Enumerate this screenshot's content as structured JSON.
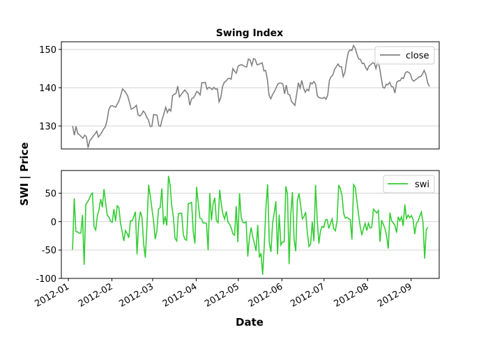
{
  "chart_data": {
    "type": "line",
    "title": "Swing Index",
    "xlabel": "Date",
    "ylabel": "SWI | Price",
    "x_ticks": [
      "2012-01",
      "2012-02",
      "2012-03",
      "2012-04",
      "2012-05",
      "2012-06",
      "2012-07",
      "2012-08",
      "2012-09"
    ],
    "x_range": [
      "2011-12-27",
      "2012-09-21"
    ],
    "grid": "horizontal",
    "panels": [
      {
        "ylim": [
          124,
          152
        ],
        "yticks": [
          130,
          140,
          150
        ],
        "legend_position": "top-right",
        "series": [
          {
            "name": "close",
            "color": "#808080",
            "start_date": "2012-01-04",
            "end_date": "2012-09-14",
            "values": [
              130.0,
              127.6,
              129.9,
              128.0,
              127.7,
              127.2,
              126.8,
              127.6,
              127.2,
              124.3,
              126.2,
              126.7,
              127.4,
              127.9,
              128.6,
              127.1,
              127.7,
              128.4,
              129.2,
              129.8,
              131.5,
              134.2,
              135.2,
              135.3,
              135.1,
              134.9,
              135.8,
              136.6,
              138.1,
              139.7,
              139.2,
              138.6,
              137.8,
              136.2,
              134.4,
              134.6,
              134.9,
              135.4,
              132.9,
              132.6,
              133.0,
              133.9,
              133.4,
              132.3,
              131.6,
              129.9,
              129.9,
              133.0,
              132.9,
              132.8,
              130.1,
              129.9,
              131.8,
              133.2,
              134.9,
              133.5,
              134.4,
              133.9,
              137.9,
              138.3,
              138.5,
              140.4,
              137.6,
              138.2,
              138.8,
              139.4,
              138.9,
              138.3,
              135.4,
              137.1,
              137.3,
              138.0,
              139.0,
              138.7,
              138.1,
              141.3,
              141.3,
              141.4,
              139.6,
              140.1,
              139.9,
              139.5,
              140.1,
              139.6,
              139.7,
              136.3,
              137.4,
              140.3,
              141.4,
              141.7,
              142.3,
              142.5,
              142.2,
              145.0,
              144.3,
              143.8,
              145.6,
              145.9,
              146.0,
              145.8,
              145.5,
              145.4,
              147.5,
              147.2,
              145.8,
              147.6,
              147.4,
              146.0,
              146.1,
              146.3,
              146.5,
              144.4,
              144.5,
              142.2,
              138.0,
              137.1,
              138.2,
              138.9,
              139.9,
              140.9,
              141.2,
              141.2,
              141.0,
              138.4,
              140.7,
              138.3,
              138.1,
              136.4,
              135.9,
              135.4,
              138.3,
              141.3,
              139.9,
              141.9,
              139.9,
              138.8,
              139.6,
              139.2,
              141.3,
              141.0,
              141.6,
              140.9,
              137.9,
              137.4,
              137.3,
              137.2,
              137.5,
              137.0,
              138.0,
              141.9,
              142.9,
              143.3,
              144.8,
              145.5,
              146.2,
              145.5,
              145.5,
              142.9,
              144.0,
              147.0,
              149.3,
              149.9,
              149.7,
              151.0,
              150.3,
              148.7,
              147.5,
              147.4,
              146.3,
              146.4,
              145.3,
              144.6,
              145.7,
              146.0,
              146.5,
              146.4,
              145.0,
              146.9,
              145.5,
              142.8,
              140.1,
              139.9,
              140.9,
              140.8,
              141.4,
              140.3,
              140.2,
              138.6,
              141.3,
              141.8,
              141.8,
              142.6,
              142.4,
              143.8,
              144.2,
              144.0,
              143.5,
              142.1,
              141.7,
              142.1,
              142.4,
              142.8,
              142.9,
              143.6,
              144.5,
              143.4,
              141.3,
              140.3
            ]
          }
        ]
      },
      {
        "ylim": [
          -100,
          90
        ],
        "yticks": [
          -100,
          -50,
          0,
          50
        ],
        "legend_position": "top-right",
        "series": [
          {
            "name": "swi",
            "color": "#32cd32",
            "start_date": "2012-01-04",
            "end_date": "2012-09-13",
            "values": [
              -49.4,
              41.1,
              -17.4,
              -18.0,
              -20.2,
              -20.3,
              11.8,
              -76.0,
              29.7,
              34.5,
              39.5,
              47.0,
              50.3,
              -9.4,
              -14.7,
              10.3,
              21.2,
              39.7,
              25.2,
              57.2,
              32.9,
              11.0,
              8.2,
              0.4,
              -1.0,
              22.1,
              0.9,
              27.9,
              24.7,
              -2.7,
              -17.9,
              -34.1,
              -15.8,
              -20.9,
              -28.5,
              1.3,
              1.3,
              8.4,
              17.3,
              -57.6,
              -1.7,
              17.6,
              7.1,
              -39.5,
              -63.5,
              -7.8,
              64.8,
              45.4,
              22.8,
              1.1,
              -30.9,
              -16.3,
              22.2,
              24.6,
              58.5,
              -5.1,
              9.6,
              -7.0,
              80.7,
              64.5,
              28.1,
              7.3,
              -29.8,
              -34.0,
              13.7,
              14.8,
              14.7,
              -23.2,
              -31.4,
              -32.8,
              31.8,
              32.5,
              33.8,
              -17.6,
              -38.5,
              61.2,
              33.5,
              6.2,
              5.1,
              -2.6,
              -2.2,
              -3.4,
              -50.5,
              50.4,
              2.1,
              31.1,
              42.1,
              1.9,
              -1.9,
              56.1,
              29.4,
              12.5,
              4.7,
              18.2,
              -1.2,
              -4.5,
              -11.5,
              -21.5,
              -24.0,
              27.3,
              -36.2,
              49.9,
              7.5,
              -1.2,
              -2.3,
              -0.1,
              -61.5,
              -28.8,
              -10.4,
              -26.6,
              -38.7,
              -51.7,
              -5.9,
              -63.2,
              -55.6,
              -93.5,
              -40.0,
              26.1,
              65.6,
              -36.9,
              -53.2,
              -2.9,
              15.6,
              35.8,
              -57.6,
              12.4,
              -41.0,
              -35.6,
              -36.0,
              62.1,
              49.0,
              -74.8,
              13.6,
              52.1,
              -30.5,
              -52.1,
              37.1,
              49.8,
              27.8,
              4.9,
              9.0,
              16.8,
              -18.9,
              -43.7,
              -39.7,
              0.0,
              -34.3,
              64.5,
              3.0,
              -38.7,
              -15.8,
              -8.3,
              -10.3,
              2.9,
              3.7,
              -12.2,
              -3.1,
              4.7,
              -12.7,
              -16.1,
              1.4,
              64.6,
              57.8,
              46.1,
              14.3,
              6.0,
              7.9,
              5.0,
              3.6,
              -31.8,
              65.0,
              60.7,
              36.9,
              12.6,
              -8.5,
              -23.6,
              -12.1,
              -3.0,
              -15.8,
              -2.7,
              -11.3,
              -10.3,
              21.9,
              18.7,
              15.2,
              19.7,
              -35.6,
              2.6,
              -4.9,
              -12.3,
              -25.6,
              -47.4,
              15.8,
              1.5,
              -2.4,
              -6.4,
              -19.5,
              8.6,
              1.6,
              8.7,
              -7.5,
              30.3,
              5.1,
              11.5,
              7.2,
              10.6,
              3.8,
              -21.9,
              -2.9,
              0.3,
              9.4,
              16.8,
              -1.3,
              -65.2,
              -13.5,
              -10.1
            ]
          }
        ]
      }
    ]
  }
}
